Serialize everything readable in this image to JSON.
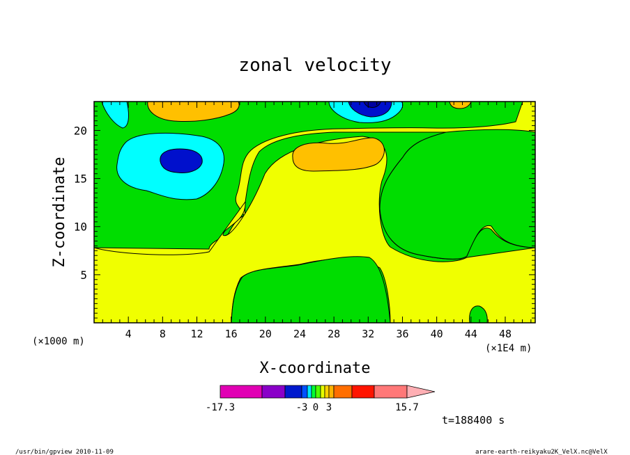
{
  "chart_data": {
    "type": "heatmap",
    "title": "zonal velocity",
    "xlabel": "X-coordinate",
    "ylabel": "Z-coordinate",
    "x_unit_left": "(×1000 m)",
    "x_unit_right": "(×1E4 m)",
    "xlim": [
      0,
      51.5
    ],
    "ylim": [
      0,
      23
    ],
    "xticks": [
      4,
      8,
      12,
      16,
      20,
      24,
      28,
      32,
      36,
      40,
      44,
      48
    ],
    "yticks": [
      5,
      10,
      15,
      20
    ],
    "time_label": "t=188400 s",
    "colorbar": {
      "levels": [
        -17.3,
        -12,
        -6,
        -3,
        -2,
        -1,
        0,
        1,
        2,
        3,
        6,
        9,
        12,
        15.7
      ],
      "colors": [
        "#e100b4",
        "#8a00c8",
        "#0019cd",
        "#0050ff",
        "#00e6ff",
        "#00ff32",
        "#50ff00",
        "#e6ff00",
        "#ffd200",
        "#ffb400",
        "#ff6e00",
        "#ff1400",
        "#ff7878",
        "#ffafb4"
      ],
      "tick_labels": [
        "-17.3",
        "-3",
        "0",
        "3",
        "15.7"
      ]
    },
    "regions": [
      {
        "level": "0 to 1",
        "color": "#00dd00",
        "description": "background"
      },
      {
        "level": "1 to 2",
        "color": "#f0ff00"
      },
      {
        "level": "2 to 3",
        "color": "#ffc000",
        "centers": [
          [
            10,
            22.5
          ],
          [
            30,
            17.5
          ],
          [
            43,
            22.5
          ]
        ]
      },
      {
        "level": "-1 to 0",
        "color": "#00ffff",
        "centers": [
          [
            9,
            16.5
          ],
          [
            2,
            22
          ],
          [
            32,
            21.5
          ]
        ]
      },
      {
        "level": "below -3",
        "color": "#0010cc",
        "centers": [
          [
            10,
            17
          ],
          [
            32,
            22.5
          ]
        ]
      }
    ]
  },
  "footer": {
    "left": "/usr/bin/gpview  2010-11-09",
    "right": "arare-earth-reikyaku2K_VelX.nc@VelX"
  }
}
